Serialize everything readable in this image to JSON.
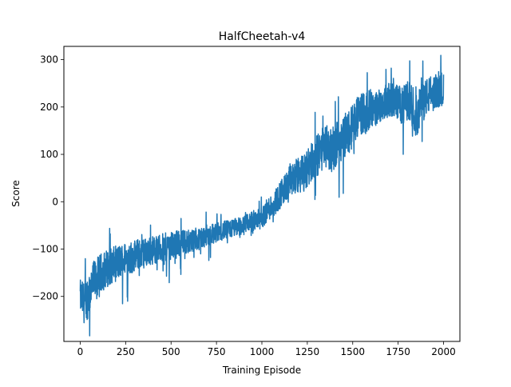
{
  "chart_data": {
    "type": "line",
    "title": "HalfCheetah-v4",
    "xlabel": "Training Episode",
    "ylabel": "Score",
    "xlim": [
      -90,
      2090
    ],
    "ylim": [
      -295,
      328
    ],
    "xticks": [
      0,
      250,
      500,
      750,
      1000,
      1250,
      1500,
      1750,
      2000
    ],
    "yticks": [
      -200,
      -100,
      0,
      100,
      200,
      300
    ],
    "ytick_labels": [
      "−200",
      "−100",
      "0",
      "100",
      "200",
      "300"
    ],
    "grid": false,
    "legend": "none",
    "series": [
      {
        "color": "#1f77b4",
        "x": [
          0,
          25,
          50,
          75,
          100,
          125,
          150,
          175,
          200,
          225,
          250,
          275,
          300,
          325,
          350,
          375,
          400,
          425,
          450,
          475,
          500,
          525,
          550,
          575,
          600,
          625,
          650,
          675,
          700,
          725,
          750,
          775,
          800,
          825,
          850,
          875,
          900,
          925,
          950,
          975,
          1000,
          1025,
          1050,
          1075,
          1100,
          1125,
          1150,
          1175,
          1200,
          1225,
          1250,
          1275,
          1300,
          1325,
          1350,
          1375,
          1400,
          1425,
          1450,
          1475,
          1500,
          1525,
          1550,
          1575,
          1600,
          1625,
          1650,
          1675,
          1700,
          1725,
          1750,
          1775,
          1800,
          1825,
          1850,
          1875,
          1900,
          1925,
          1950,
          1975,
          2000
        ],
        "values": [
          -200,
          -215,
          -190,
          -170,
          -160,
          -145,
          -140,
          -135,
          -130,
          -125,
          -120,
          -118,
          -115,
          -110,
          -108,
          -105,
          -102,
          -100,
          -98,
          -95,
          -92,
          -90,
          -88,
          -85,
          -82,
          -80,
          -78,
          -75,
          -70,
          -68,
          -65,
          -62,
          -60,
          -58,
          -55,
          -52,
          -50,
          -45,
          -42,
          -38,
          -35,
          -20,
          -10,
          0,
          15,
          25,
          40,
          50,
          55,
          60,
          70,
          85,
          95,
          110,
          120,
          105,
          115,
          130,
          140,
          145,
          160,
          175,
          190,
          185,
          200,
          195,
          205,
          210,
          215,
          215,
          210,
          200,
          215,
          205,
          180,
          200,
          220,
          225,
          230,
          235,
          240
        ],
        "noise_amplitude": [
          35,
          45,
          50,
          45,
          45,
          40,
          40,
          38,
          38,
          36,
          35,
          35,
          34,
          33,
          32,
          30,
          30,
          30,
          30,
          30,
          30,
          28,
          28,
          26,
          26,
          25,
          24,
          24,
          22,
          22,
          22,
          20,
          20,
          20,
          20,
          20,
          20,
          20,
          22,
          22,
          22,
          24,
          26,
          28,
          30,
          32,
          34,
          36,
          38,
          40,
          42,
          44,
          44,
          46,
          46,
          46,
          46,
          48,
          48,
          48,
          48,
          46,
          46,
          44,
          40,
          38,
          36,
          36,
          36,
          36,
          38,
          40,
          42,
          44,
          46,
          44,
          40,
          38,
          38,
          36,
          36
        ]
      }
    ]
  }
}
